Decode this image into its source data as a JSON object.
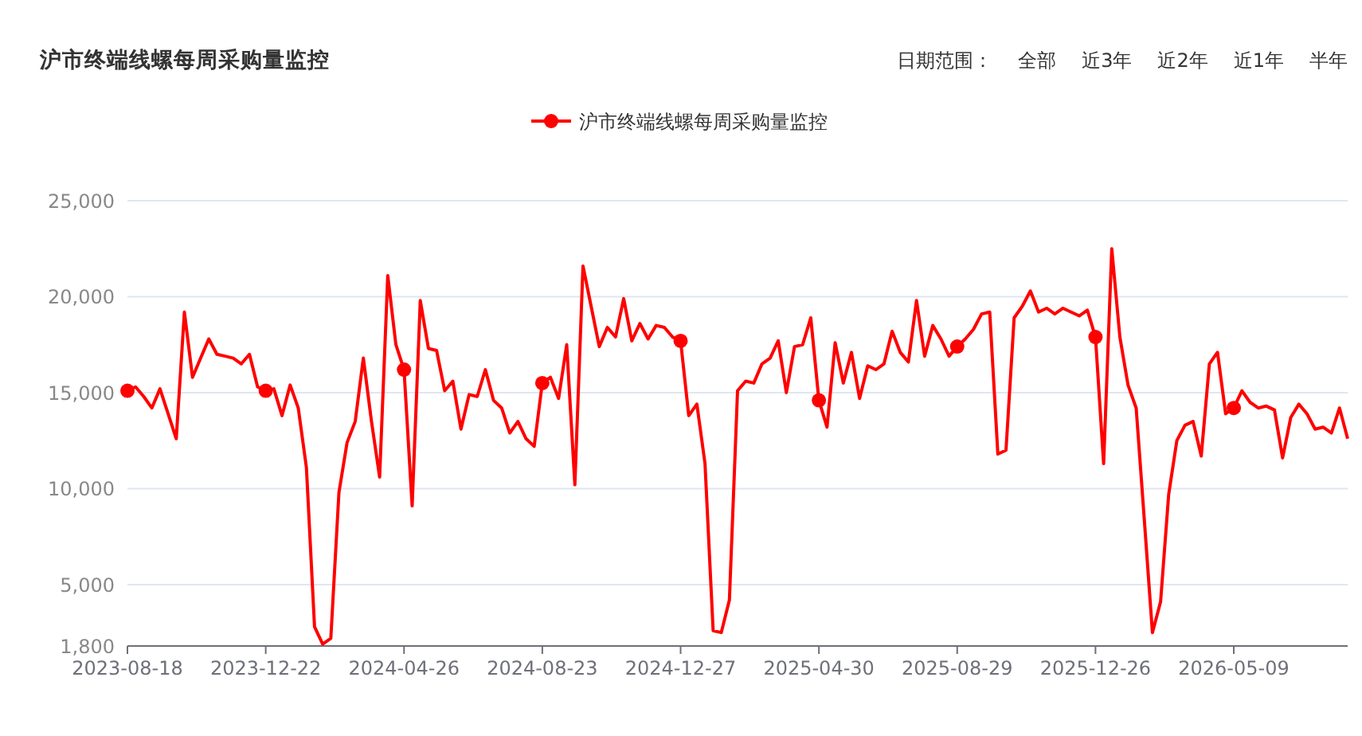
{
  "chart_data": {
    "type": "line",
    "title": "沪市终端线螺每周采购量监控",
    "annotations": [
      "日期范围：",
      "全部",
      "近3年",
      "近2年",
      "近1年",
      "半年"
    ],
    "categories": [
      "2023-08-18",
      null,
      null,
      null,
      null,
      null,
      null,
      null,
      null,
      null,
      null,
      null,
      null,
      null,
      null,
      null,
      null,
      "2023-12-22",
      null,
      null,
      null,
      null,
      null,
      null,
      null,
      null,
      null,
      null,
      null,
      null,
      null,
      null,
      null,
      null,
      "2024-04-26",
      null,
      null,
      null,
      null,
      null,
      null,
      null,
      null,
      null,
      null,
      null,
      null,
      null,
      null,
      null,
      null,
      "2024-08-23",
      null,
      null,
      null,
      null,
      null,
      null,
      null,
      null,
      null,
      null,
      null,
      null,
      null,
      null,
      null,
      null,
      "2024-12-27",
      null,
      null,
      null,
      null,
      null,
      null,
      null,
      null,
      null,
      null,
      null,
      null,
      null,
      null,
      null,
      null,
      "2025-04-30",
      null,
      null,
      null,
      null,
      null,
      null,
      null,
      null,
      null,
      null,
      null,
      null,
      null,
      null,
      null,
      null,
      "2025-08-29",
      null,
      null,
      null,
      null,
      null,
      null,
      null,
      null,
      null,
      null,
      null,
      null,
      null,
      null,
      null,
      null,
      "2025-12-26",
      null,
      null,
      null,
      null,
      null,
      null,
      null,
      null,
      null,
      null,
      null,
      null,
      null,
      null,
      null,
      null,
      "2026-05-09",
      null,
      null,
      null,
      null,
      null,
      null,
      null,
      null,
      null,
      null,
      null,
      null,
      null,
      null
    ],
    "series": [
      {
        "name": "沪市终端线螺每周采购量监控",
        "color": "#ff0000",
        "values": [
          15100,
          15300,
          14800,
          14200,
          15200,
          13900,
          12600,
          19200,
          15800,
          16800,
          17800,
          17000,
          16900,
          16800,
          16500,
          17000,
          15300,
          15100,
          15200,
          13800,
          15400,
          14200,
          11100,
          2800,
          1900,
          2200,
          9800,
          12400,
          13500,
          16800,
          13500,
          10600,
          21100,
          17500,
          16200,
          9100,
          19800,
          17300,
          17200,
          15100,
          15600,
          13100,
          14900,
          14800,
          16200,
          14600,
          14200,
          12900,
          13500,
          12600,
          12200,
          15500,
          15800,
          14700,
          17500,
          10200,
          21600,
          19500,
          17400,
          18400,
          17900,
          19900,
          17700,
          18600,
          17800,
          18500,
          18400,
          17900,
          17700,
          13800,
          14400,
          11300,
          2600,
          2500,
          4200,
          15100,
          15600,
          15500,
          16500,
          16800,
          17700,
          15000,
          17400,
          17500,
          18900,
          14600,
          13200,
          17600,
          15500,
          17100,
          14700,
          16400,
          16200,
          16500,
          18200,
          17100,
          16600,
          19800,
          16900,
          18500,
          17800,
          16900,
          17400,
          17800,
          18300,
          19100,
          19200,
          11800,
          12000,
          18900,
          19500,
          20300,
          19200,
          19400,
          19100,
          19400,
          19200,
          19000,
          19300,
          17900,
          11300,
          22500,
          17900,
          15400,
          14200,
          8400,
          2500,
          4100,
          9700,
          12500,
          13300,
          13500,
          11700,
          16500,
          17100,
          13900,
          14200,
          15100,
          14500,
          14200,
          14300,
          14100,
          11600,
          13700,
          14400,
          13900,
          13100,
          13200,
          12900,
          14200,
          12600
        ]
      },
      {
        "type": "scatter",
        "color": "#ff0000",
        "marker": "circle",
        "values": [
          15100,
          null,
          null,
          null,
          null,
          null,
          null,
          null,
          null,
          null,
          null,
          null,
          null,
          null,
          null,
          null,
          null,
          15100,
          null,
          null,
          null,
          null,
          null,
          null,
          null,
          null,
          null,
          null,
          null,
          null,
          null,
          null,
          null,
          null,
          16200,
          null,
          null,
          null,
          null,
          null,
          null,
          null,
          null,
          null,
          null,
          null,
          null,
          null,
          null,
          null,
          null,
          15500,
          null,
          null,
          null,
          null,
          null,
          null,
          null,
          null,
          null,
          null,
          null,
          null,
          null,
          null,
          null,
          null,
          17700,
          null,
          null,
          null,
          null,
          null,
          null,
          null,
          null,
          null,
          null,
          null,
          null,
          null,
          null,
          null,
          null,
          14600,
          null,
          null,
          null,
          null,
          null,
          null,
          null,
          null,
          null,
          null,
          null,
          null,
          null,
          null,
          null,
          null,
          17400,
          null,
          null,
          null,
          null,
          null,
          null,
          null,
          null,
          null,
          null,
          null,
          null,
          null,
          null,
          null,
          null,
          17900,
          null,
          null,
          null,
          null,
          null,
          null,
          null,
          null,
          null,
          null,
          null,
          null,
          null,
          null,
          null,
          null,
          14200,
          null,
          null,
          null,
          null,
          null,
          null,
          null,
          null,
          null,
          null,
          null,
          null,
          null,
          null
        ]
      }
    ],
    "ylim": [
      1800,
      25000
    ],
    "yticks": [
      {
        "value": 1800,
        "label": "1,800"
      },
      {
        "value": 5000,
        "label": "5,000"
      },
      {
        "value": 10000,
        "label": "10,000"
      },
      {
        "value": 15000,
        "label": "15,000"
      },
      {
        "value": 20000,
        "label": "20,000"
      },
      {
        "value": 25000,
        "label": "25,000"
      }
    ],
    "grid": "y",
    "legend": "top",
    "line_style": "solid"
  }
}
